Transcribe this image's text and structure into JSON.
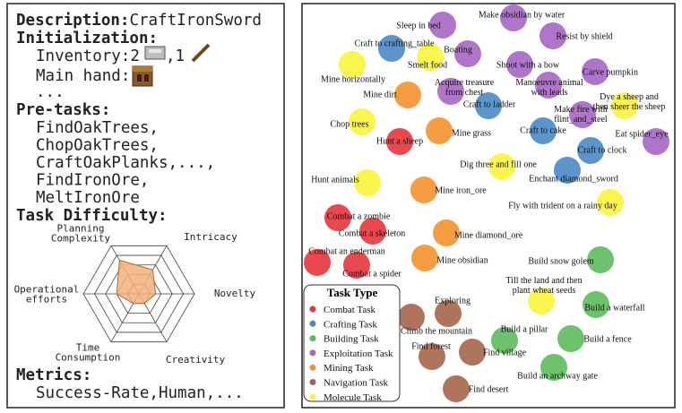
{
  "left": {
    "description": {
      "label": "Description:",
      "value": "CraftIronSword"
    },
    "initialization": {
      "title": "Initialization:",
      "inventory": "Inventory:2",
      "inventory_more": ",1",
      "main_hand": "Main hand:",
      "more": "..."
    },
    "pre_tasks": {
      "title": "Pre-tasks:",
      "lines": [
        "FindOakTrees,",
        "ChopOakTrees,",
        "CraftOakPlanks,...,",
        "FindIronOre,",
        "MeltIronOre"
      ]
    },
    "difficulty": {
      "title": "Task Difficulty:",
      "rlim": [
        0,
        5
      ],
      "rticks": [
        1,
        2,
        3,
        4,
        5
      ],
      "axes": [
        {
          "label": [
            "Planning",
            "Complexity"
          ],
          "value": 3.5
        },
        {
          "label": [
            "Intricacy"
          ],
          "value": 2.5
        },
        {
          "label": [
            "Novelty"
          ],
          "value": 1.5
        },
        {
          "label": [
            "Creativity"
          ],
          "value": 1
        },
        {
          "label": [
            "Time",
            "Consumption"
          ],
          "value": 1
        },
        {
          "label": [
            "Operational",
            "efforts"
          ],
          "value": 2
        }
      ]
    },
    "metrics": {
      "title": "Metrics:",
      "value": "Success-Rate,Human,..."
    }
  },
  "task_map": {
    "legend_title": "Task Type",
    "types": [
      {
        "name": "Combat Task",
        "color": "#e8343c",
        "tasks": [
          [
            "Hunt a sheep"
          ],
          [
            "Combat a zombie"
          ],
          [
            "Combat a skeleton"
          ],
          [
            "Combat an enderman"
          ],
          [
            "Combat a spider"
          ]
        ]
      },
      {
        "name": "Crafting Task",
        "color": "#4a8ac7",
        "tasks": [
          [
            "Craft to crafting_table"
          ],
          [
            "Craft to ladder"
          ],
          [
            "Craft to cake"
          ],
          [
            "Craft to clock"
          ],
          [
            "Enchant diamond_sword"
          ]
        ]
      },
      {
        "name": "Building Task",
        "color": "#5cbd5c",
        "tasks": [
          [
            "Build snow golem"
          ],
          [
            "Build a waterfall"
          ],
          [
            "Build a pillar"
          ],
          [
            "Build a fence"
          ],
          [
            "Build an archway gate"
          ]
        ]
      },
      {
        "name": "Exploitation Task",
        "color": "#a666c4",
        "tasks": [
          [
            "Sleep in bed"
          ],
          [
            "Make obsidian by water"
          ],
          [
            "Resist by shield"
          ],
          [
            "Boating"
          ],
          [
            "Shoot with a bow"
          ],
          [
            "Carve pumpkin"
          ],
          [
            "Acquire treasure",
            "from chest"
          ],
          [
            "Manoeuvre animal",
            "with leads"
          ],
          [
            "Make fire with",
            "flint_and_steel"
          ],
          [
            "Eat spider_eye"
          ]
        ]
      },
      {
        "name": "Mining Task",
        "color": "#f5922c",
        "tasks": [
          [
            "Mine dirt"
          ],
          [
            "Mine grass"
          ],
          [
            "Mine iron_ore"
          ],
          [
            "Mine diamond_ore"
          ],
          [
            "Mine obsidian"
          ]
        ]
      },
      {
        "name": "Navigation Task",
        "color": "#a6664a",
        "tasks": [
          [
            "Exploring"
          ],
          [
            "Climb the mountain"
          ],
          [
            "Find forest"
          ],
          [
            "Find village"
          ],
          [
            "Find desert"
          ]
        ]
      },
      {
        "name": "Molecule Task",
        "color": "#fbf53a",
        "tasks": [
          [
            "Mine horizontally"
          ],
          [
            "Smelt food"
          ],
          [
            "Dye a sheep and",
            "then sheer the sheep"
          ],
          [
            "Chop trees"
          ],
          [
            "Dig three and fill one"
          ],
          [
            "Hunt animals"
          ],
          [
            "Fly with trident on a rainy day"
          ],
          [
            "Till the land and then",
            "plant wheat seeds"
          ]
        ]
      }
    ]
  }
}
